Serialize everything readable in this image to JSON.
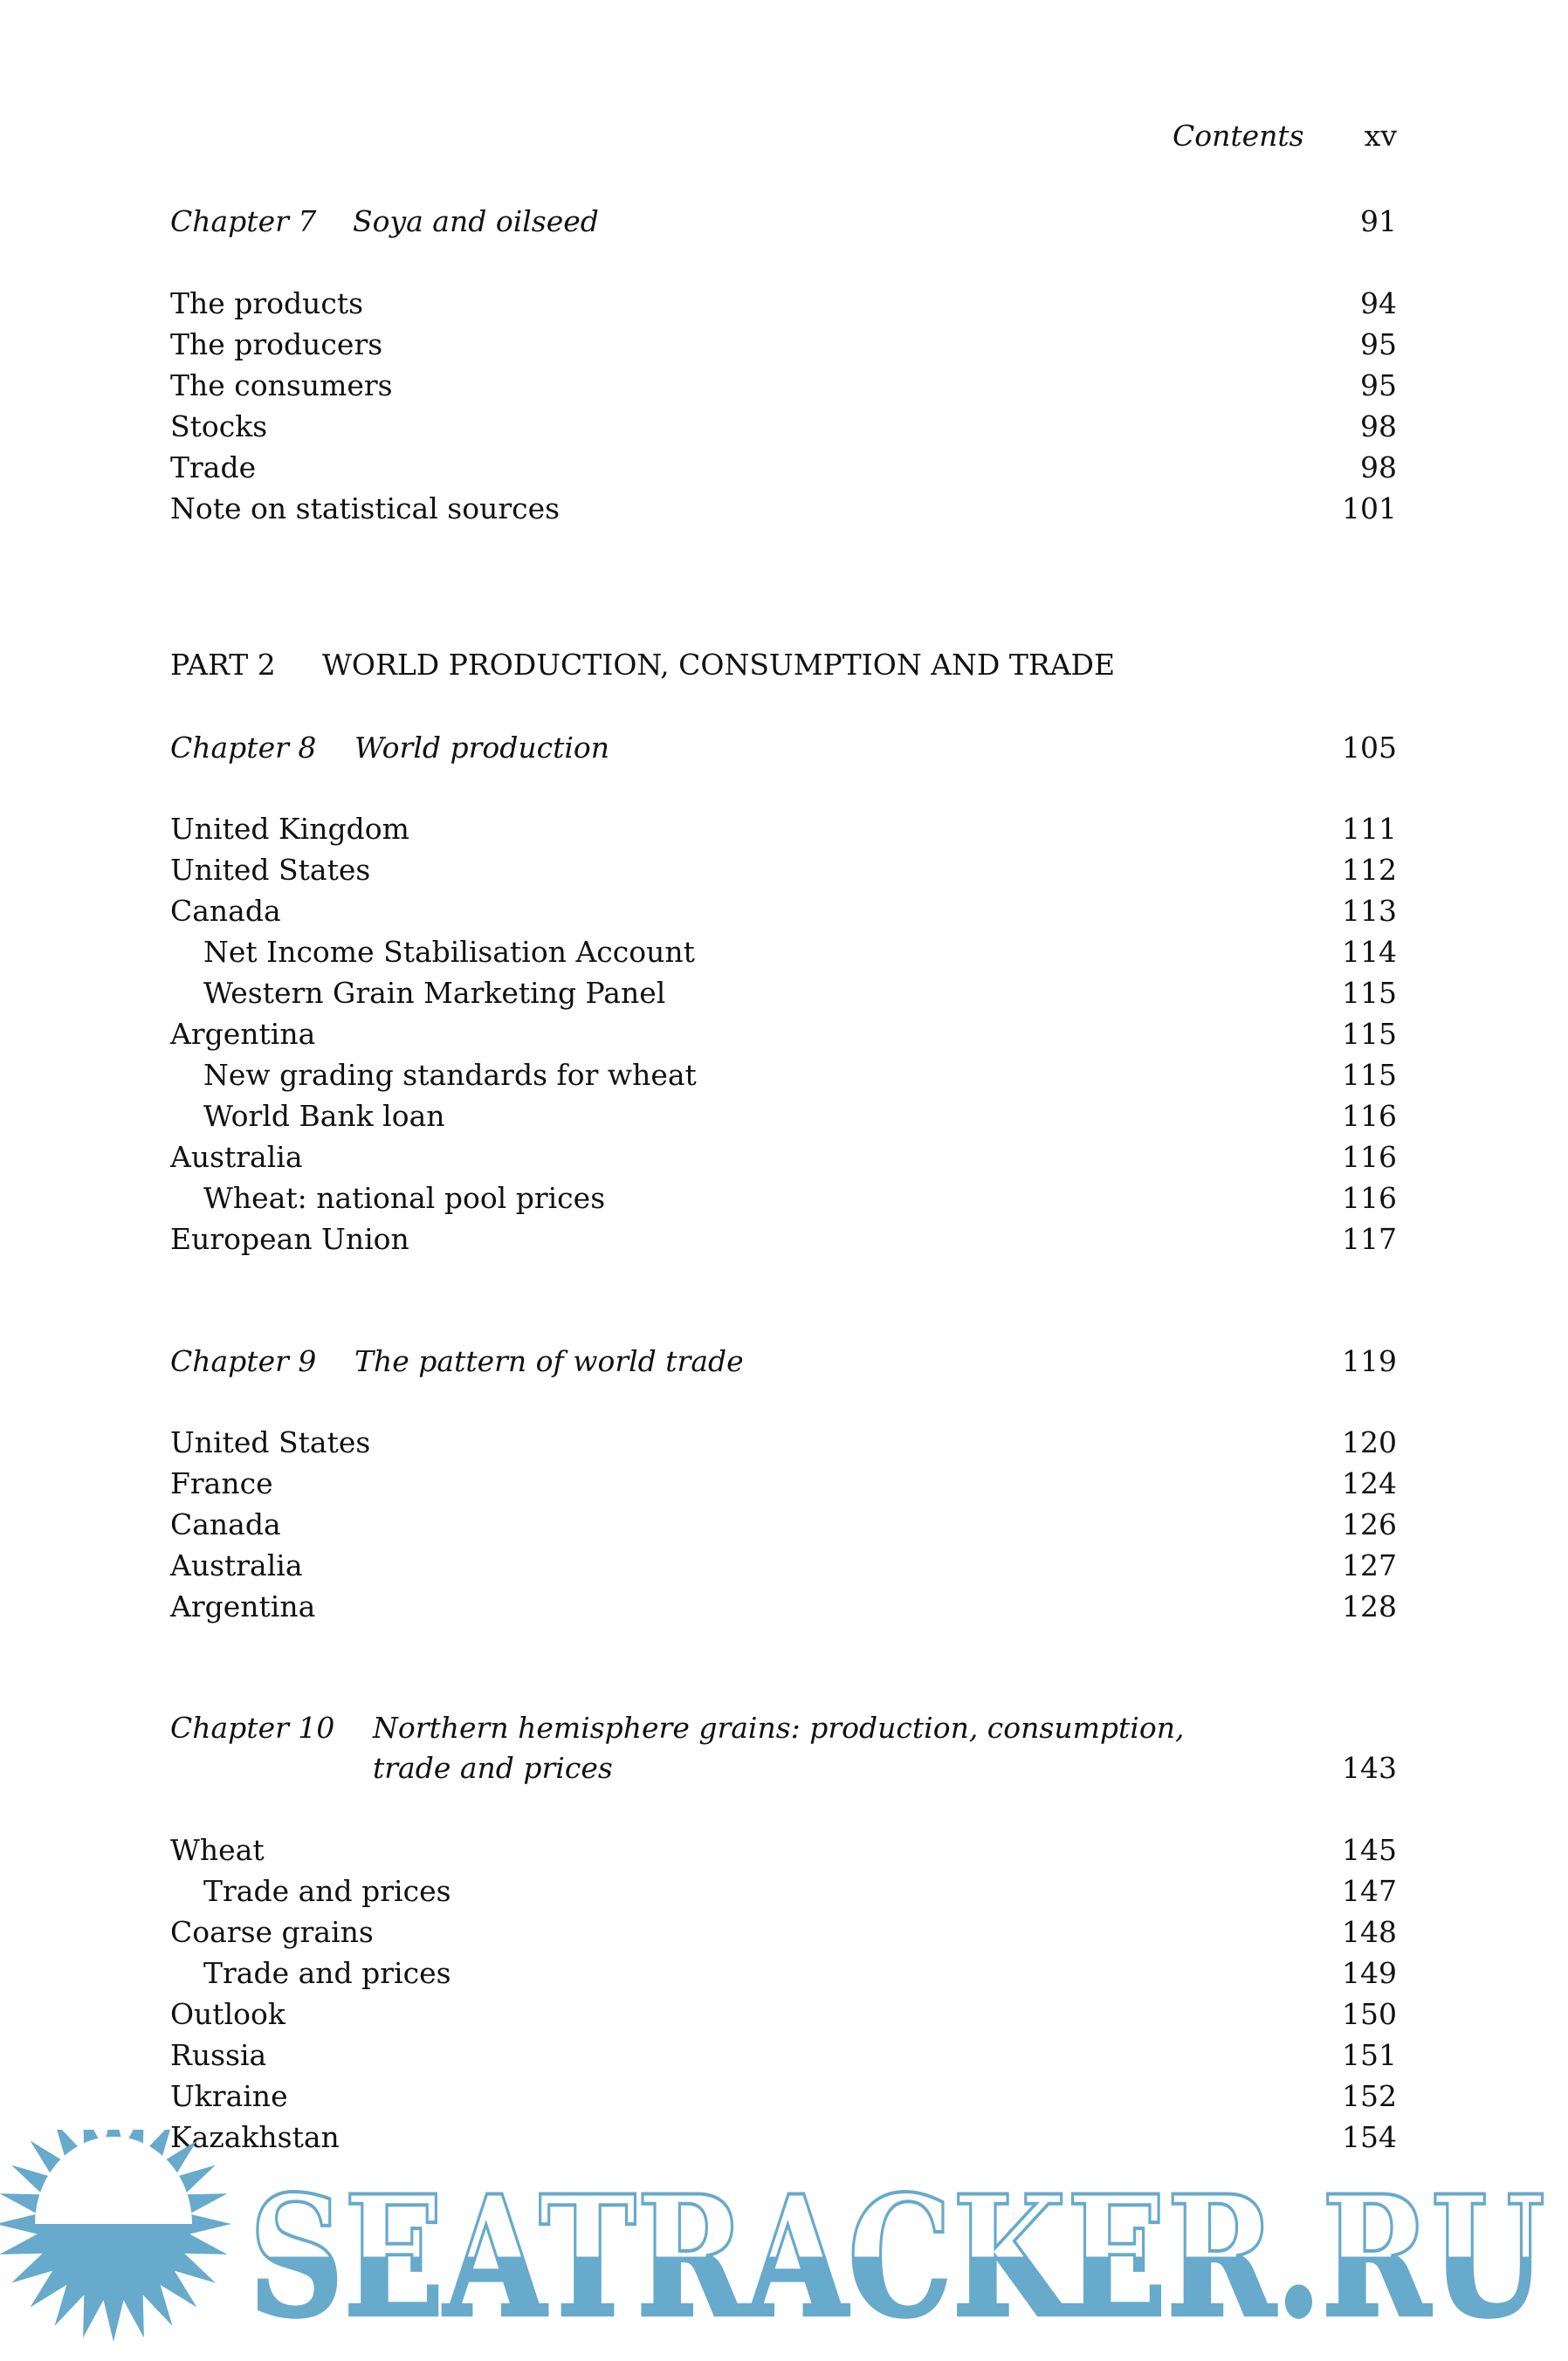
{
  "header": {
    "title": "Contents",
    "page_number": "xv"
  },
  "chapter7": {
    "label": "Chapter 7",
    "title": "Soya and oilseed",
    "page": "91",
    "items": [
      {
        "label": "The products",
        "page": "94",
        "indent": false
      },
      {
        "label": "The producers",
        "page": "95",
        "indent": false
      },
      {
        "label": "The consumers",
        "page": "95",
        "indent": false
      },
      {
        "label": "Stocks",
        "page": "98",
        "indent": false
      },
      {
        "label": "Trade",
        "page": "98",
        "indent": false
      },
      {
        "label": "Note on statistical sources",
        "page": "101",
        "indent": false
      }
    ]
  },
  "part2": {
    "label": "PART 2",
    "title": "WORLD PRODUCTION, CONSUMPTION AND TRADE"
  },
  "chapter8": {
    "label": "Chapter 8",
    "title": "World production",
    "page": "105",
    "items": [
      {
        "label": "United Kingdom",
        "page": "111",
        "indent": false
      },
      {
        "label": "United States",
        "page": "112",
        "indent": false
      },
      {
        "label": "Canada",
        "page": "113",
        "indent": false
      },
      {
        "label": "Net Income Stabilisation Account",
        "page": "114",
        "indent": true
      },
      {
        "label": "Western Grain Marketing Panel",
        "page": "115",
        "indent": true
      },
      {
        "label": "Argentina",
        "page": "115",
        "indent": false
      },
      {
        "label": "New grading standards for wheat",
        "page": "115",
        "indent": true
      },
      {
        "label": "World Bank loan",
        "page": "116",
        "indent": true
      },
      {
        "label": "Australia",
        "page": "116",
        "indent": false
      },
      {
        "label": "Wheat: national pool prices",
        "page": "116",
        "indent": true
      },
      {
        "label": "European Union",
        "page": "117",
        "indent": false
      }
    ]
  },
  "chapter9": {
    "label": "Chapter 9",
    "title": "The pattern of world trade",
    "page": "119",
    "items": [
      {
        "label": "United States",
        "page": "120",
        "indent": false
      },
      {
        "label": "France",
        "page": "124",
        "indent": false
      },
      {
        "label": "Canada",
        "page": "126",
        "indent": false
      },
      {
        "label": "Australia",
        "page": "127",
        "indent": false
      },
      {
        "label": "Argentina",
        "page": "128",
        "indent": false
      }
    ]
  },
  "chapter10": {
    "label": "Chapter 10",
    "title_line1": "Northern hemisphere grains: production, consumption,",
    "title_line2": "trade and prices",
    "page": "143",
    "items": [
      {
        "label": "Wheat",
        "page": "145",
        "indent": false
      },
      {
        "label": "Trade and prices",
        "page": "147",
        "indent": true
      },
      {
        "label": "Coarse grains",
        "page": "148",
        "indent": false
      },
      {
        "label": "Trade and prices",
        "page": "149",
        "indent": true
      },
      {
        "label": "Outlook",
        "page": "150",
        "indent": false
      },
      {
        "label": "Russia",
        "page": "151",
        "indent": false
      },
      {
        "label": "Ukraine",
        "page": "152",
        "indent": false
      },
      {
        "label": "Kazakhstan",
        "page": "154",
        "indent": false
      }
    ]
  },
  "watermark": {
    "text": "SEATRACKER.RU",
    "color": "#67aacb"
  }
}
